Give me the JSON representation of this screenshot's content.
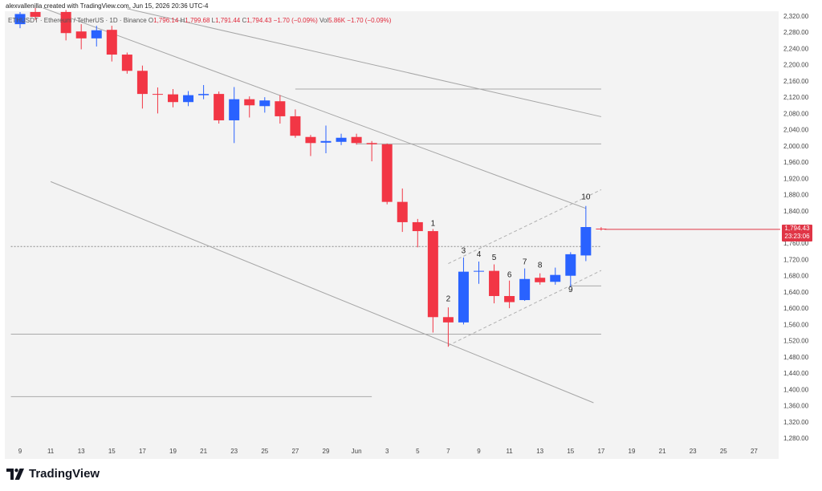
{
  "header": {
    "credit": "alexvallenilla created with TradingView.com, Jun 15, 2026 20:36 UTC-4",
    "symbol": "ETHUSDT · Ethereum / TetherUS · 1D · Binance",
    "o_label": "O",
    "o": "1,796.14",
    "h_label": "H",
    "h": "1,799.68",
    "l_label": "L",
    "l": "1,791.44",
    "c_label": "C",
    "c": "1,794.43",
    "change": "−1.70 (−0.09%)",
    "vol_label": "Vol",
    "vol": "5.86K",
    "vol_change": "−1.70 (−0.09%)"
  },
  "price_box": {
    "price": "1,794.43",
    "countdown": "23:23:06"
  },
  "brand": {
    "name": "TradingView"
  },
  "colors": {
    "up": "#2962ff",
    "down": "#f23645",
    "background": "#f3f3f3",
    "line": "#9a9a9a"
  },
  "chart_data": {
    "type": "candlestick",
    "ylim": [
      1260,
      2330
    ],
    "y_ticks": [
      "2,320.00",
      "2,280.00",
      "2,240.00",
      "2,200.00",
      "2,160.00",
      "2,120.00",
      "2,080.00",
      "2,040.00",
      "2,000.00",
      "1,960.00",
      "1,920.00",
      "1,880.00",
      "1,840.00",
      "1,800.00",
      "1,760.00",
      "1,720.00",
      "1,680.00",
      "1,640.00",
      "1,600.00",
      "1,560.00",
      "1,520.00",
      "1,480.00",
      "1,440.00",
      "1,400.00",
      "1,360.00",
      "1,320.00",
      "1,280.00"
    ],
    "x_ticks": [
      {
        "label": "9",
        "x": -1
      },
      {
        "label": "11",
        "x": 1
      },
      {
        "label": "13",
        "x": 3
      },
      {
        "label": "15",
        "x": 5
      },
      {
        "label": "17",
        "x": 7
      },
      {
        "label": "19",
        "x": 9
      },
      {
        "label": "21",
        "x": 11
      },
      {
        "label": "23",
        "x": 13
      },
      {
        "label": "25",
        "x": 15
      },
      {
        "label": "27",
        "x": 17
      },
      {
        "label": "29",
        "x": 19
      },
      {
        "label": "Jun",
        "x": 21
      },
      {
        "label": "3",
        "x": 23
      },
      {
        "label": "5",
        "x": 25
      },
      {
        "label": "7",
        "x": 27
      },
      {
        "label": "9",
        "x": 29
      },
      {
        "label": "11",
        "x": 31
      },
      {
        "label": "13",
        "x": 33
      },
      {
        "label": "15",
        "x": 35
      },
      {
        "label": "17",
        "x": 37
      },
      {
        "label": "19",
        "x": 39
      },
      {
        "label": "21",
        "x": 41
      },
      {
        "label": "23",
        "x": 43
      },
      {
        "label": "25",
        "x": 45
      },
      {
        "label": "27",
        "x": 47
      }
    ],
    "candles": [
      {
        "x": -1,
        "o": 2300,
        "h": 2330,
        "l": 2290,
        "c": 2325
      },
      {
        "x": 0,
        "o": 2330,
        "h": 2340,
        "l": 2310,
        "c": 2318
      },
      {
        "x": 2,
        "o": 2330,
        "h": 2335,
        "l": 2260,
        "c": 2278
      },
      {
        "x": 3,
        "o": 2282,
        "h": 2300,
        "l": 2238,
        "c": 2265
      },
      {
        "x": 4,
        "o": 2265,
        "h": 2296,
        "l": 2245,
        "c": 2285
      },
      {
        "x": 5,
        "o": 2286,
        "h": 2296,
        "l": 2208,
        "c": 2225
      },
      {
        "x": 6,
        "o": 2225,
        "h": 2230,
        "l": 2178,
        "c": 2185
      },
      {
        "x": 7,
        "o": 2185,
        "h": 2198,
        "l": 2092,
        "c": 2128
      },
      {
        "x": 8,
        "o": 2128,
        "h": 2144,
        "l": 2080,
        "c": 2127
      },
      {
        "x": 9,
        "o": 2127,
        "h": 2140,
        "l": 2095,
        "c": 2108
      },
      {
        "x": 10,
        "o": 2108,
        "h": 2135,
        "l": 2098,
        "c": 2125
      },
      {
        "x": 11,
        "o": 2125,
        "h": 2150,
        "l": 2115,
        "c": 2128
      },
      {
        "x": 12,
        "o": 2128,
        "h": 2134,
        "l": 2055,
        "c": 2063
      },
      {
        "x": 13,
        "o": 2063,
        "h": 2145,
        "l": 2007,
        "c": 2115
      },
      {
        "x": 14,
        "o": 2115,
        "h": 2122,
        "l": 2070,
        "c": 2100
      },
      {
        "x": 15,
        "o": 2098,
        "h": 2120,
        "l": 2082,
        "c": 2112
      },
      {
        "x": 16,
        "o": 2110,
        "h": 2125,
        "l": 2055,
        "c": 2073
      },
      {
        "x": 17,
        "o": 2073,
        "h": 2090,
        "l": 2020,
        "c": 2025
      },
      {
        "x": 18,
        "o": 2022,
        "h": 2027,
        "l": 1975,
        "c": 2007
      },
      {
        "x": 19,
        "o": 2008,
        "h": 2050,
        "l": 1982,
        "c": 2012
      },
      {
        "x": 20,
        "o": 2010,
        "h": 2030,
        "l": 2002,
        "c": 2020
      },
      {
        "x": 21,
        "o": 2022,
        "h": 2030,
        "l": 2003,
        "c": 2007
      },
      {
        "x": 22,
        "o": 2007,
        "h": 2012,
        "l": 1962,
        "c": 2004
      },
      {
        "x": 23,
        "o": 2004,
        "h": 2006,
        "l": 1856,
        "c": 1862
      },
      {
        "x": 24,
        "o": 1862,
        "h": 1895,
        "l": 1788,
        "c": 1812
      },
      {
        "x": 25,
        "o": 1812,
        "h": 1820,
        "l": 1750,
        "c": 1790
      },
      {
        "x": 26,
        "o": 1790,
        "h": 1795,
        "l": 1540,
        "c": 1578
      },
      {
        "x": 27,
        "o": 1578,
        "h": 1602,
        "l": 1505,
        "c": 1565
      },
      {
        "x": 28,
        "o": 1565,
        "h": 1725,
        "l": 1560,
        "c": 1690
      },
      {
        "x": 29,
        "o": 1690,
        "h": 1715,
        "l": 1660,
        "c": 1692
      },
      {
        "x": 30,
        "o": 1692,
        "h": 1708,
        "l": 1612,
        "c": 1630
      },
      {
        "x": 31,
        "o": 1630,
        "h": 1668,
        "l": 1600,
        "c": 1615
      },
      {
        "x": 32,
        "o": 1620,
        "h": 1698,
        "l": 1618,
        "c": 1672
      },
      {
        "x": 33,
        "o": 1675,
        "h": 1686,
        "l": 1658,
        "c": 1664
      },
      {
        "x": 34,
        "o": 1665,
        "h": 1700,
        "l": 1658,
        "c": 1682
      },
      {
        "x": 35,
        "o": 1680,
        "h": 1738,
        "l": 1652,
        "c": 1733
      },
      {
        "x": 36,
        "o": 1730,
        "h": 1852,
        "l": 1716,
        "c": 1800
      },
      {
        "x": 37,
        "o": 1796.14,
        "h": 1799.68,
        "l": 1791.44,
        "c": 1794.43
      }
    ],
    "wave_labels": [
      {
        "text": "1",
        "x": 26,
        "y": 1803
      },
      {
        "text": "2",
        "x": 27,
        "y": 1617
      },
      {
        "text": "3",
        "x": 28,
        "y": 1736
      },
      {
        "text": "4",
        "x": 29,
        "y": 1727
      },
      {
        "text": "5",
        "x": 30,
        "y": 1719
      },
      {
        "text": "6",
        "x": 31,
        "y": 1676
      },
      {
        "text": "7",
        "x": 32,
        "y": 1708
      },
      {
        "text": "8",
        "x": 33,
        "y": 1700
      },
      {
        "text": "9",
        "x": 35,
        "y": 1640
      },
      {
        "text": "10",
        "x": 36,
        "y": 1868
      }
    ],
    "hlines": [
      {
        "y": 2140,
        "x1": 17,
        "x2": 37
      },
      {
        "y": 2005,
        "x1": 21,
        "x2": 37
      },
      {
        "y": 1752,
        "x1": -1.6,
        "x2": 37,
        "dotted": true
      },
      {
        "y": 1536,
        "x1": -1.6,
        "x2": 37
      },
      {
        "y": 1382,
        "x1": -1.6,
        "x2": 22
      },
      {
        "y": 1655,
        "x1": 35,
        "x2": 37
      }
    ],
    "trendlines": [
      {
        "x1": 0.5,
        "y1": 2340,
        "x2": 36,
        "y2": 1846
      },
      {
        "x1": 1,
        "y1": 1912,
        "x2": 36.5,
        "y2": 1367
      },
      {
        "x1": 6,
        "y1": 2338,
        "x2": 37,
        "y2": 2072
      },
      {
        "x1": 27,
        "y1": 1508,
        "x2": 37,
        "y2": 1693,
        "dashed": true
      },
      {
        "x1": 27,
        "y1": 1710,
        "x2": 37,
        "y2": 1892,
        "dashed": true
      }
    ]
  }
}
